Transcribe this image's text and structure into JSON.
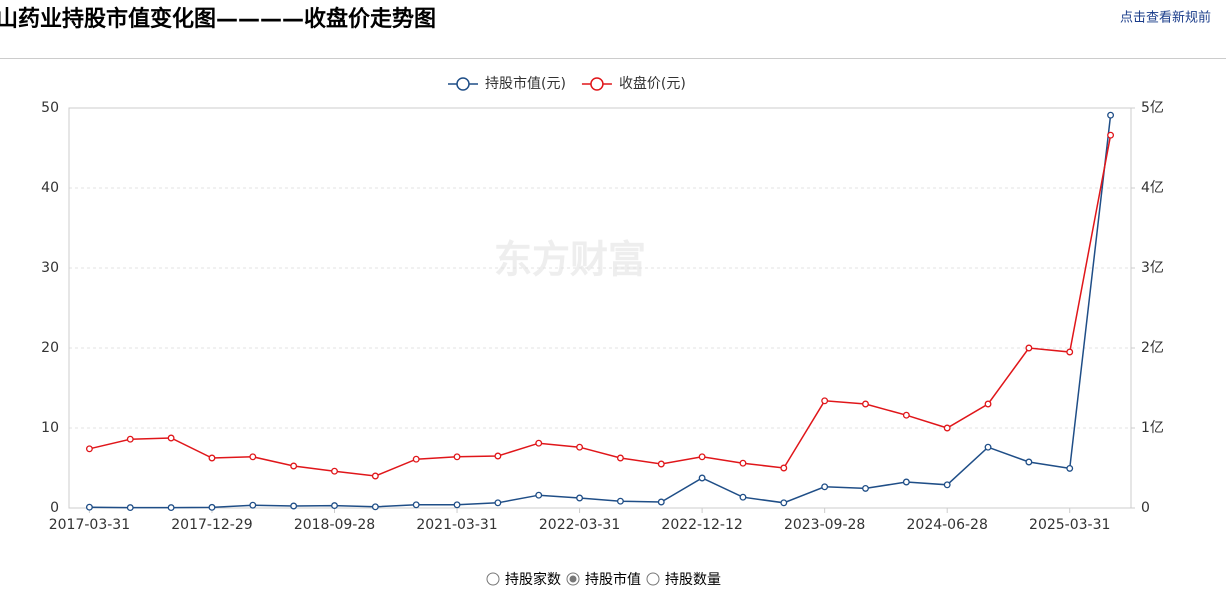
{
  "header": {
    "title": "山药业持股市值变化图————收盘价走势图",
    "link": "点击查看新规前"
  },
  "chart_data": {
    "type": "line",
    "watermark": "东方财富",
    "categories": [
      "2017-03-31",
      null,
      null,
      "2017-12-29",
      null,
      null,
      "2018-09-28",
      null,
      null,
      "2021-03-31",
      null,
      null,
      "2022-03-31",
      null,
      null,
      "2022-12-12",
      null,
      null,
      "2023-09-28",
      null,
      null,
      "2024-06-28",
      null,
      null,
      "2025-03-31",
      null
    ],
    "series": [
      {
        "name": "持股市值(元)",
        "color": "#1f4e87",
        "axis": "y2",
        "values": [
          1000000,
          500000,
          500000,
          800000,
          3500000,
          2500000,
          3000000,
          1500000,
          4000000,
          4000000,
          6500000,
          16000000,
          12500000,
          8500000,
          7500000,
          37500000,
          13500000,
          6500000,
          26500000,
          24500000,
          32500000,
          29000000,
          76000000,
          57500000,
          49500000,
          491000000
        ]
      },
      {
        "name": "收盘价(元)",
        "color": "#e0161a",
        "values": [
          7.4,
          8.6,
          8.75,
          6.25,
          6.4,
          5.25,
          4.6,
          4.0,
          6.1,
          6.4,
          6.5,
          8.1,
          7.6,
          6.25,
          5.5,
          6.4,
          5.6,
          5.0,
          13.4,
          13.0,
          11.6,
          10.0,
          13.0,
          20.0,
          19.5,
          46.6
        ]
      }
    ],
    "ylim": [
      0,
      50
    ],
    "yticks": [
      0,
      10,
      20,
      30,
      40,
      50
    ],
    "y2lim": [
      0,
      500000000
    ],
    "y2ticks": [
      0,
      {
        "value": 100000000,
        "label": "1亿"
      },
      {
        "value": 200000000,
        "label": "2亿"
      },
      {
        "value": 300000000,
        "label": "3亿"
      },
      {
        "value": 400000000,
        "label": "4亿"
      },
      {
        "value": 500000000,
        "label": "5亿"
      }
    ],
    "grid": true,
    "legend": "top"
  },
  "options": {
    "items": [
      "持股家数",
      "持股市值",
      "持股数量"
    ],
    "selected": 1
  }
}
